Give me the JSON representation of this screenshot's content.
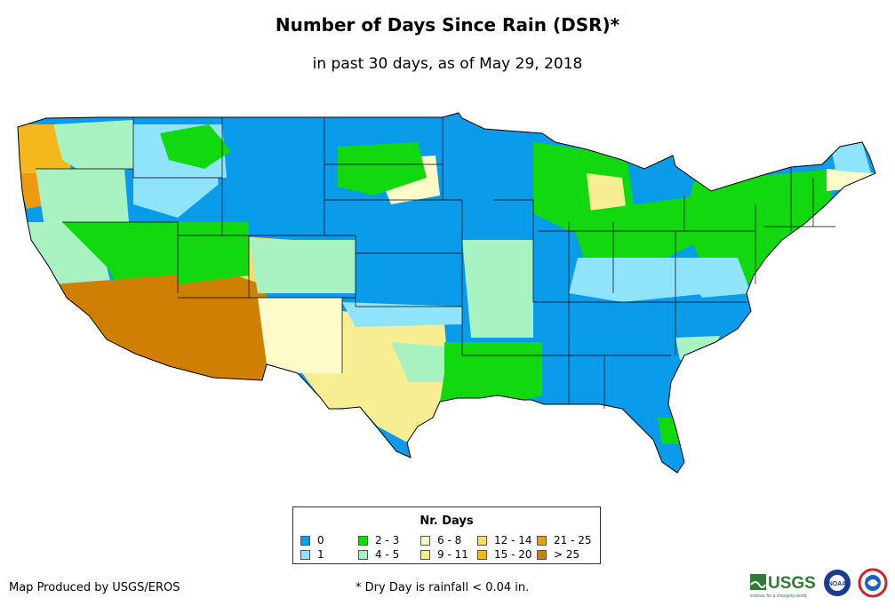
{
  "title": "Number of Days Since Rain (DSR)*",
  "subtitle": "in past 30 days, as of May 29, 2018",
  "legend": {
    "title": "Nr. Days",
    "items": [
      {
        "label": "0",
        "color": "#0a9bea"
      },
      {
        "label": "1",
        "color": "#8fe3fb"
      },
      {
        "label": "2 - 3",
        "color": "#12d90f"
      },
      {
        "label": "4 - 5",
        "color": "#a8f2c1"
      },
      {
        "label": "6 - 8",
        "color": "#fdfbc9"
      },
      {
        "label": "9 - 11",
        "color": "#f7ee94"
      },
      {
        "label": "12 - 14",
        "color": "#f6dc6a"
      },
      {
        "label": "15 - 20",
        "color": "#f4b81d"
      },
      {
        "label": "21 - 25",
        "color": "#ee9a10"
      },
      {
        "label": "> 25",
        "color": "#cf8004"
      }
    ]
  },
  "credit": "Map Produced by USGS/EROS",
  "footnote": "* Dry Day is rainfall < 0.04 in.",
  "logos": {
    "usgs_text": "USGS",
    "usgs_tagline": "science for a changing world",
    "noaa": "NOAA"
  }
}
